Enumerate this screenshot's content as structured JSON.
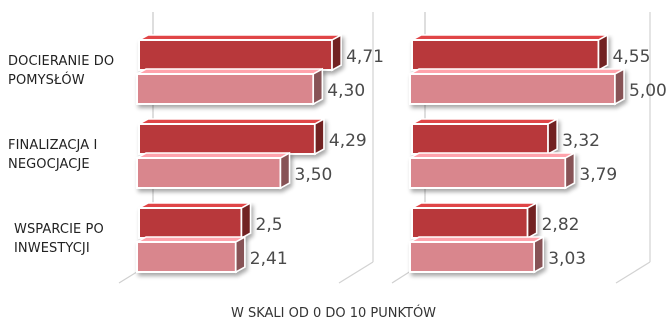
{
  "chart_data": {
    "type": "bar",
    "orientation": "horizontal",
    "style": "3d",
    "categories": [
      [
        "DOCIERANIE DO",
        "POMYSŁÓW"
      ],
      [
        "FINALIZACJA I",
        "NEGOCJACJE"
      ],
      [
        "WSPARCIE PO",
        "INWESTYCJI"
      ]
    ],
    "xlim": [
      0,
      10
    ],
    "grid": false,
    "legend": "none",
    "note": "W SKALI OD 0 DO 10 PUNKTÓW",
    "panels": [
      {
        "series": [
          {
            "values": [
              4.71,
              4.29,
              2.5
            ],
            "labels": [
              "4,71",
              "4,29",
              "2,5"
            ],
            "color": "#b8383a"
          },
          {
            "values": [
              4.3,
              3.5,
              2.41
            ],
            "labels": [
              "4,30",
              "3,50",
              "2,41"
            ],
            "color": "#d9868d"
          }
        ]
      },
      {
        "series": [
          {
            "values": [
              4.55,
              3.32,
              2.82
            ],
            "labels": [
              "4,55",
              "3,32",
              "2,82"
            ],
            "color": "#b8383a"
          },
          {
            "values": [
              5.0,
              3.79,
              3.03
            ],
            "labels": [
              "5,00",
              "3,79",
              "3,03"
            ],
            "color": "#d9868d"
          }
        ]
      }
    ]
  }
}
